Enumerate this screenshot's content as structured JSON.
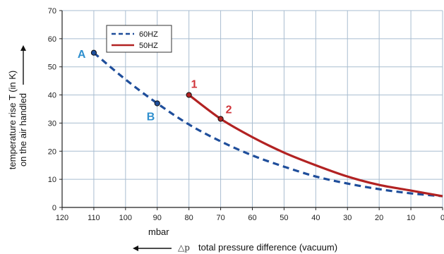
{
  "chart_data": {
    "type": "line",
    "xlabel": "total pressure difference (vacuum)",
    "xlabel_symbol": "△p",
    "xunit": "mbar",
    "ylabel_line1": "temperature rise T (in K)",
    "ylabel_line2": "on the air handled",
    "xlim": [
      120,
      0
    ],
    "ylim": [
      0,
      70
    ],
    "x_ticks": [
      120,
      110,
      100,
      90,
      80,
      70,
      60,
      50,
      40,
      30,
      20,
      10,
      0
    ],
    "y_ticks": [
      0,
      10,
      20,
      30,
      40,
      50,
      60,
      70
    ],
    "grid": true,
    "legend_position": "top-left",
    "series": [
      {
        "name": "60HZ",
        "style": "dashed",
        "color": "#1f4e9b",
        "x": [
          110,
          100,
          90,
          80,
          70,
          60,
          50,
          40,
          30,
          20,
          10,
          0
        ],
        "y": [
          55,
          45.5,
          37,
          29.5,
          23.5,
          18.5,
          14.5,
          11,
          8.5,
          6.5,
          5,
          4
        ]
      },
      {
        "name": "50HZ",
        "style": "solid",
        "color": "#b22222",
        "x": [
          80,
          70,
          60,
          50,
          40,
          30,
          20,
          10,
          0
        ],
        "y": [
          40,
          31.5,
          25,
          19.5,
          15,
          11,
          8,
          6,
          4
        ]
      }
    ],
    "points": [
      {
        "label": "A",
        "x": 110,
        "y": 55,
        "color": "#2f8fce"
      },
      {
        "label": "B",
        "x": 90,
        "y": 37,
        "color": "#2f8fce"
      },
      {
        "label": "1",
        "x": 80,
        "y": 40,
        "color": "#d0343a"
      },
      {
        "label": "2",
        "x": 70,
        "y": 31.5,
        "color": "#d0343a"
      }
    ]
  }
}
